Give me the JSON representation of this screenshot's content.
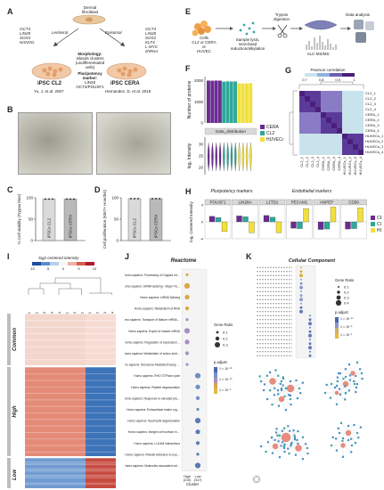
{
  "panel_letters": [
    "A",
    "B",
    "C",
    "D",
    "E",
    "F",
    "G",
    "H",
    "I",
    "J",
    "K"
  ],
  "panelA": {
    "source": "Dermal\nfibroblast",
    "left_genes": [
      "OCT4",
      "LIN28",
      "SOX4",
      "NANOG"
    ],
    "left_method": "Lentiviral",
    "right_method": "Episomal",
    "right_genes": [
      "OCT4",
      "LIN28",
      "SOX2",
      "KLF4",
      "L-MYC",
      "shRNA"
    ],
    "morphology_title": "Morphology:",
    "morphology_text": [
      "Islands clusters",
      "(undifferentiated",
      "cells)"
    ],
    "marker_title": [
      "Pluripotency",
      "marker:"
    ],
    "marker_text": [
      "LIN28",
      "OCT4/POUSF1"
    ],
    "left_line": "iPSC CL2",
    "left_ref": "Yu, J. et al. 2007",
    "right_line": "iPSC CERA",
    "right_ref": "Hernandez, D. et al. 2016"
  },
  "panelC": {
    "ylabel": "% Cell viability (Trypan blue)",
    "categories": [
      "iPSCs CL2",
      "iPSCs CERA"
    ],
    "values": [
      97,
      97
    ],
    "ylim": [
      0,
      100
    ],
    "ticks": [
      "0",
      "50",
      "100"
    ]
  },
  "panelD": {
    "ylabel": "Cell proliferation (Ki67+ Hoechst)",
    "categories": [
      "iPSCs CL2",
      "iPSCs CERA"
    ],
    "values": [
      98,
      98
    ],
    "ylim": [
      0,
      100
    ],
    "ticks": [
      "0",
      "50",
      "100"
    ]
  },
  "panelE": {
    "step1": "Cells\nCL2 or CERA\nor\nHUVEC",
    "step2": "Sample lysis,\nsera-bead\nreduction/alkylation",
    "step3": "Trypsin\ndigestion",
    "step4": "nLC-MS/MS",
    "step5": "Data analysis"
  },
  "panelF": {
    "ylabel_top": "Number of proteins",
    "ticks_top": [
      "0",
      "1000",
      "2000"
    ],
    "ylabel_bottom": "log₂ Intensity",
    "ticks_bottom": [
      "20",
      "25",
      "30"
    ],
    "strip_title": "Data_distribution",
    "legend": [
      {
        "name": "CERA",
        "color": "#6a2c91"
      },
      {
        "name": "CL2",
        "color": "#2ea89a"
      },
      {
        "name": "HUVECs",
        "color": "#f2e03a"
      }
    ],
    "groups": [
      {
        "color": "#6a2c91",
        "counts": [
          2010,
          2005,
          2012,
          2008
        ]
      },
      {
        "color": "#2ea89a",
        "counts": [
          1960,
          1975,
          1968,
          1970
        ]
      },
      {
        "color": "#f2e03a",
        "counts": [
          1880,
          1872,
          1878,
          1890
        ]
      }
    ]
  },
  "panelG": {
    "title": "Pearson correlation",
    "scale_ticks": [
      "0.7",
      "0.8",
      "0.9",
      "1"
    ],
    "labels": [
      "CL2_1",
      "CL2_2",
      "CL2_3",
      "CL2_4",
      "CERA_1",
      "CERA_2",
      "CERA_3",
      "CERA_4",
      "HUVECs_1",
      "HUVECs_2",
      "HUVECs_3",
      "HUVECs_4"
    ]
  },
  "panelH": {
    "pluri_title": "Pluripotency markers",
    "endo_title": "Endothelial markers",
    "genes": [
      "POUSF1",
      "LIN28A",
      "L1TD1",
      "PECAM1",
      "ANPEP",
      "CD59"
    ],
    "ylabel": "log₂ Centered Intensity",
    "ticks": [
      "4",
      "0",
      "-4"
    ],
    "legend": [
      {
        "name": "CERA",
        "color": "#6a2c91"
      },
      {
        "name": "CL2",
        "color": "#2ea89a"
      },
      {
        "name": "HUVECs",
        "color": "#f2e03a"
      }
    ],
    "chart_data": {
      "type": "bar",
      "categories": [
        "POUSF1",
        "LIN28A",
        "L1TD1",
        "PECAM1",
        "ANPEP",
        "CD59"
      ],
      "series": [
        {
          "name": "CERA",
          "values": [
            1.3,
            1.4,
            1.5,
            -1.5,
            -1.8,
            -1.7
          ]
        },
        {
          "name": "CL2",
          "values": [
            1.0,
            1.2,
            1.1,
            -1.6,
            -1.7,
            -1.6
          ]
        },
        {
          "name": "HUVECs",
          "values": [
            -2.3,
            -2.6,
            -2.6,
            3.1,
            3.5,
            3.3
          ]
        }
      ],
      "ylim": [
        -4,
        4
      ]
    }
  },
  "panelI": {
    "scale_title": "log2 centered intensity",
    "scale_ticks": [
      "-10",
      "-5",
      "0",
      "5",
      "10"
    ],
    "columns": [
      "CL2_1",
      "CL2_2",
      "CL2_3",
      "CL2_4",
      "CERA_4",
      "CERA_1",
      "CERA_3",
      "CERA_2",
      "HUVECs_1",
      "HUVECs_2",
      "HUVECs_3",
      "HUVECs_4"
    ],
    "row_groups": [
      "Common",
      "High",
      "Low"
    ]
  },
  "panelJ": {
    "title": "Reactome",
    "xlabel": "Cluster",
    "x_categories": [
      "High\n(210)",
      "Low\n(317)"
    ],
    "size_legend_title": "Gene Ratio",
    "size_legend": [
      "0.1",
      "0.2",
      "0.3"
    ],
    "color_legend_title": "p.adjust",
    "color_legend": [
      "1 × 10⁻¹⁵",
      "1 × 10⁻¹⁰",
      "1 × 10⁻⁵"
    ],
    "terms": [
      "Homo sapiens: Processing of Capped Intron-Containing Pre-mRNA",
      "Homo sapiens: mRNA Splicing - Major Pathway",
      "Homo sapiens: mRNA Splicing",
      "Homo sapiens: Metabolism of RNA",
      "Homo sapiens: Transport of Mature mRNA derived from an Intron-Containing Transcript",
      "Homo sapiens: Export of mature mRNA",
      "Homo sapiens: Regulation of expression of SLITs and ROBOs",
      "Homo sapiens: Metabolism of amino acids",
      "Homo sapiens: Nonsense-Mediated Decay (NMD)",
      "Homo sapiens: RHO GTPase cycle",
      "Homo sapiens: Platelet degranulation",
      "Homo sapiens: Response to elevated platelet Ca2+",
      "Homo sapiens: Extracellular matrix organization",
      "Homo sapiens: Neutrophil degranulation",
      "Homo sapiens: Integrin cell surface interactions",
      "Homo sapiens: L1CAM interactions",
      "Homo sapiens: Platelet Adhesion to exposed collagen",
      "Homo sapiens: Molecules associated with elastic fibres"
    ]
  },
  "panelK": {
    "title": "Cellular Component",
    "size_legend_title": "Gene Ratio",
    "size_legend": [
      "0.1",
      "0.2",
      "0.3",
      "0.4"
    ],
    "color_legend_title": "p.adjust",
    "color_legend": [
      "1 × 10⁻¹⁰",
      "1 × 10⁻⁵",
      "1 × 10⁻¹"
    ]
  }
}
